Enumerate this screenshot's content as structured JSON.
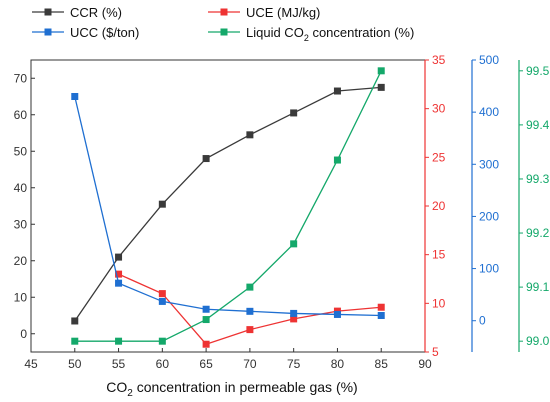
{
  "chart_data": {
    "type": "line",
    "x": [
      50,
      55,
      60,
      65,
      70,
      75,
      80,
      85
    ],
    "xlim": [
      45,
      90
    ],
    "xticks": [
      45,
      50,
      55,
      60,
      65,
      70,
      75,
      80,
      85,
      90
    ],
    "xlabel": {
      "prefix": "CO",
      "sub": "2",
      "suffix": " concentration in permeable gas (%)"
    },
    "legend": {
      "placement": "top",
      "items": [
        {
          "label": "CCR (%)",
          "series": "ccr"
        },
        {
          "label": "UCE (MJ/kg)",
          "series": "uce"
        },
        {
          "label": "UCC ($/ton)",
          "series": "ucc"
        },
        {
          "label_prefix": "Liquid  CO",
          "label_sub": "2",
          "label_suffix": " concentration (%)",
          "series": "liquid"
        }
      ]
    },
    "axes": {
      "left": {
        "min": -5,
        "max": 75,
        "ticks": [
          0,
          10,
          20,
          30,
          40,
          50,
          60,
          70
        ],
        "color": "#333333"
      },
      "uce": {
        "min": 5,
        "max": 35,
        "ticks": [
          5,
          10,
          15,
          20,
          25,
          30,
          35
        ],
        "color": "#ee3333"
      },
      "ucc": {
        "min": -60,
        "max": 500,
        "ticks": [
          0,
          100,
          200,
          300,
          400,
          500
        ],
        "color": "#1f6fd1"
      },
      "liquid": {
        "min": 98.98,
        "max": 99.52,
        "ticks": [
          "99.0",
          "99.1",
          "99.2",
          "99.3",
          "99.4",
          "99.5"
        ],
        "color": "#14a86a"
      }
    },
    "series": [
      {
        "key": "ccr",
        "name": "CCR (%)",
        "axis": "left",
        "color": "#3a3a3a",
        "values": [
          3.5,
          21.0,
          35.5,
          48.0,
          54.5,
          60.5,
          66.5,
          67.5
        ]
      },
      {
        "key": "uce",
        "name": "UCE (MJ/kg)",
        "axis": "uce",
        "color": "#ee3333",
        "values": [
          null,
          13.0,
          11.0,
          5.8,
          7.3,
          8.4,
          9.2,
          9.6
        ]
      },
      {
        "key": "ucc",
        "name": "UCC ($/ton)",
        "axis": "ucc",
        "color": "#1f6fd1",
        "values": [
          430,
          72,
          37,
          22,
          18,
          14,
          12,
          10
        ]
      },
      {
        "key": "liquid",
        "name": "Liquid CO2 concentration (%)",
        "axis": "liquid",
        "color": "#14a86a",
        "values": [
          99.0,
          99.0,
          99.0,
          99.04,
          99.1,
          99.18,
          99.335,
          99.5
        ]
      }
    ]
  }
}
